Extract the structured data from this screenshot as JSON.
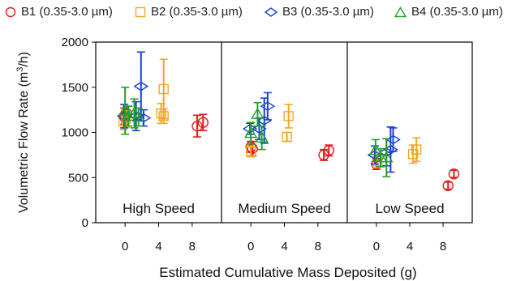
{
  "legend": [
    {
      "label": "B1 (0.35-3.0 µm)",
      "color": "#e41a1c",
      "marker": "circle"
    },
    {
      "label": "B2 (0.35-3.0 µm)",
      "color": "#f5a623",
      "marker": "square"
    },
    {
      "label": "B3 (0.35-3.0 µm)",
      "color": "#1a3fd6",
      "marker": "diamond"
    },
    {
      "label": "B4 (0.35-3.0 µm)",
      "color": "#22a02a",
      "marker": "triangle"
    }
  ],
  "chart_data": {
    "type": "scatter",
    "ylabel_text": "Volumetric Flow Rate (m",
    "ylabel_sup": "3",
    "ylabel_end": "/h)",
    "xlabel": "Estimated Cumulative Mass Deposited (g)",
    "ylim": [
      0,
      2000
    ],
    "yticks": [
      0,
      500,
      1000,
      1500,
      2000
    ],
    "xlim": [
      -3.5,
      11.5
    ],
    "xticks": [
      0,
      4,
      8
    ],
    "panels": [
      {
        "name": "High Speed",
        "series": [
          {
            "name": "B1",
            "points": [
              {
                "x": -0.1,
                "y": 1180,
                "err": 90
              },
              {
                "x": 0.2,
                "y": 1210,
                "err": 80
              },
              {
                "x": 0.0,
                "y": 1160,
                "err": 70
              },
              {
                "x": 8.6,
                "y": 1070,
                "err": 120
              },
              {
                "x": 9.3,
                "y": 1110,
                "err": 90
              }
            ]
          },
          {
            "name": "B2",
            "points": [
              {
                "x": -0.2,
                "y": 1120,
                "err": 90
              },
              {
                "x": 0.1,
                "y": 1150,
                "err": 90
              },
              {
                "x": 4.6,
                "y": 1480,
                "err": 330
              },
              {
                "x": 4.3,
                "y": 1210,
                "err": 110
              },
              {
                "x": 4.6,
                "y": 1180,
                "err": 80
              }
            ]
          },
          {
            "name": "B3",
            "points": [
              {
                "x": -0.1,
                "y": 1180,
                "err": 130
              },
              {
                "x": 1.3,
                "y": 1180,
                "err": 160
              },
              {
                "x": 1.9,
                "y": 1510,
                "err": 380
              },
              {
                "x": 2.2,
                "y": 1160,
                "err": 90
              }
            ]
          },
          {
            "name": "B4",
            "points": [
              {
                "x": 0.0,
                "y": 1240,
                "err": 260
              },
              {
                "x": 0.4,
                "y": 1180,
                "err": 110
              },
              {
                "x": 1.1,
                "y": 1210,
                "err": 160
              },
              {
                "x": 1.6,
                "y": 1170,
                "err": 100
              }
            ]
          }
        ]
      },
      {
        "name": "Medium Speed",
        "series": [
          {
            "name": "B1",
            "points": [
              {
                "x": 0.0,
                "y": 840,
                "err": 60
              },
              {
                "x": 0.2,
                "y": 820,
                "err": 80
              },
              {
                "x": 8.7,
                "y": 750,
                "err": 60
              },
              {
                "x": 9.3,
                "y": 800,
                "err": 60
              }
            ]
          },
          {
            "name": "B2",
            "points": [
              {
                "x": 0.0,
                "y": 790,
                "err": 60
              },
              {
                "x": 4.5,
                "y": 1180,
                "err": 130
              },
              {
                "x": 4.3,
                "y": 950,
                "err": 50
              }
            ]
          },
          {
            "name": "B3",
            "points": [
              {
                "x": -0.1,
                "y": 1040,
                "err": 60
              },
              {
                "x": 1.0,
                "y": 1040,
                "err": 120
              },
              {
                "x": 1.6,
                "y": 1130,
                "err": 250
              },
              {
                "x": 2.0,
                "y": 1290,
                "err": 150
              }
            ]
          },
          {
            "name": "B4",
            "points": [
              {
                "x": 0.0,
                "y": 990,
                "err": 120
              },
              {
                "x": 0.8,
                "y": 1200,
                "err": 130
              },
              {
                "x": 1.3,
                "y": 940,
                "err": 130
              }
            ]
          }
        ]
      },
      {
        "name": "Low Speed",
        "series": [
          {
            "name": "B1",
            "points": [
              {
                "x": 0.0,
                "y": 650,
                "err": 60
              },
              {
                "x": 8.6,
                "y": 410,
                "err": 40
              },
              {
                "x": 9.3,
                "y": 540,
                "err": 40
              }
            ]
          },
          {
            "name": "B2",
            "points": [
              {
                "x": 0.1,
                "y": 680,
                "err": 70
              },
              {
                "x": 4.4,
                "y": 760,
                "err": 100
              },
              {
                "x": 4.8,
                "y": 810,
                "err": 130
              }
            ]
          },
          {
            "name": "B3",
            "points": [
              {
                "x": -0.2,
                "y": 750,
                "err": 100
              },
              {
                "x": 1.2,
                "y": 780,
                "err": 150
              },
              {
                "x": 1.7,
                "y": 810,
                "err": 250
              },
              {
                "x": 2.0,
                "y": 920,
                "err": 130
              }
            ]
          },
          {
            "name": "B4",
            "points": [
              {
                "x": -0.1,
                "y": 800,
                "err": 120
              },
              {
                "x": 0.5,
                "y": 720,
                "err": 100
              },
              {
                "x": 1.2,
                "y": 720,
                "err": 210
              }
            ]
          }
        ]
      }
    ]
  }
}
